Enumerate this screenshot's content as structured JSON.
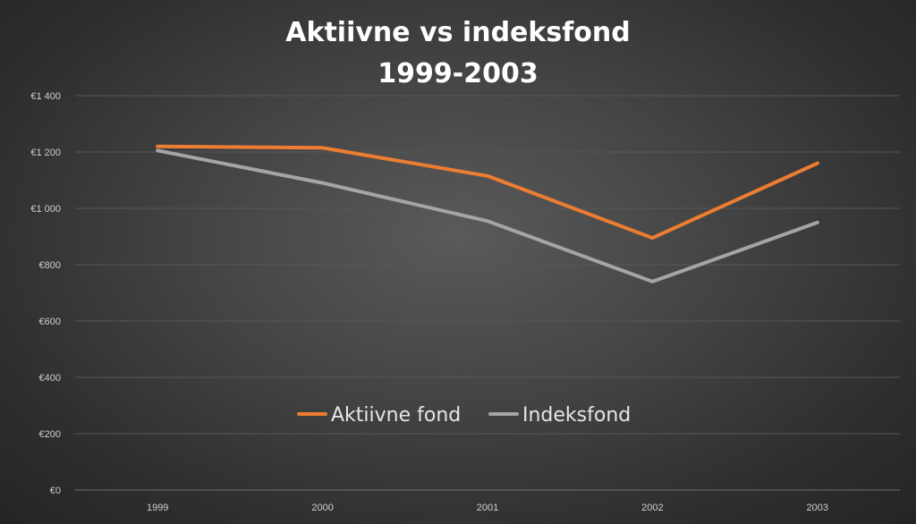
{
  "chart_data": {
    "type": "line",
    "title_lines": [
      "Aktiivne vs indeksfond",
      "1999-2003"
    ],
    "categories": [
      "1999",
      "2000",
      "2001",
      "2002",
      "2003"
    ],
    "series": [
      {
        "name": "Aktiivne fond",
        "color": "#ed7d31",
        "values": [
          1220,
          1215,
          1115,
          895,
          1160
        ]
      },
      {
        "name": "Indeksfond",
        "color": "#a5a5a5",
        "values": [
          1205,
          1090,
          955,
          740,
          950
        ]
      }
    ],
    "ylim": [
      0,
      1400
    ],
    "y_ticks": [
      0,
      200,
      400,
      600,
      800,
      1000,
      1200,
      1400
    ],
    "y_tick_labels": [
      "€0",
      "€200",
      "€400",
      "€600",
      "€800",
      "€1 000",
      "€1 200",
      "€1 400"
    ],
    "grid": true,
    "legend_position": "inside-center"
  }
}
